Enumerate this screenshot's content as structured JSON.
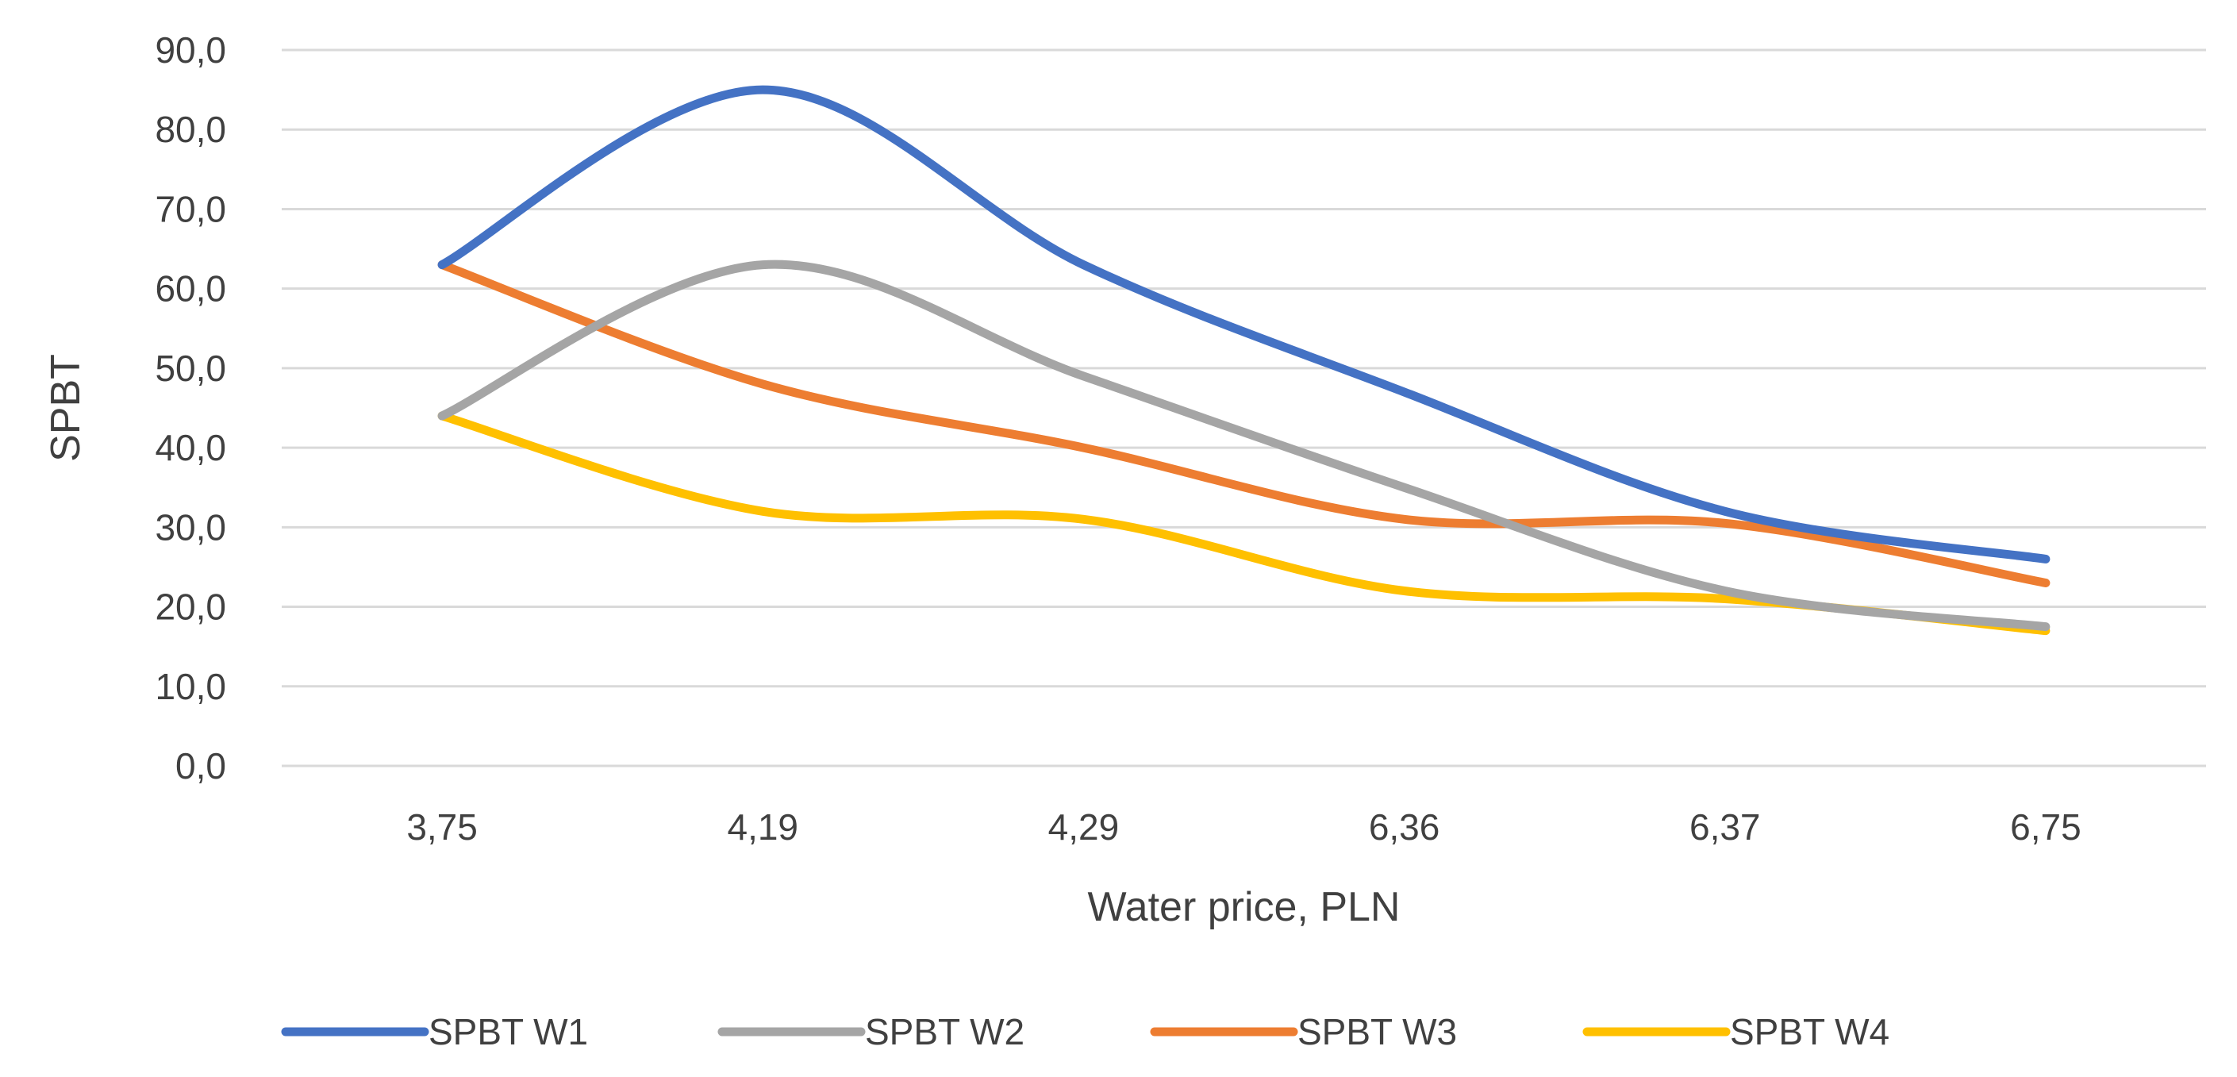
{
  "chart_data": {
    "type": "line",
    "smooth": true,
    "categories": [
      "3,75",
      "4,19",
      "4,29",
      "6,36",
      "6,37",
      "6,75"
    ],
    "series": [
      {
        "name": "SPBT W1",
        "color": "#4472C4",
        "values": [
          63,
          85,
          63,
          47,
          32,
          26
        ]
      },
      {
        "name": "SPBT W2",
        "color": "#A5A5A5",
        "values": [
          44,
          63,
          49,
          35,
          22,
          17.5
        ]
      },
      {
        "name": "SPBT W3",
        "color": "#ED7D31",
        "values": [
          63,
          48,
          40,
          31,
          30.5,
          23
        ]
      },
      {
        "name": "SPBT W4",
        "color": "#FFC000",
        "values": [
          44,
          32,
          31,
          22,
          21,
          17
        ]
      }
    ],
    "xlabel": "Water price, PLN",
    "ylabel": "SPBT",
    "ylim": [
      0,
      90
    ],
    "yticks": [
      "0,0",
      "10,0",
      "20,0",
      "30,0",
      "40,0",
      "50,0",
      "60,0",
      "70,0",
      "80,0",
      "90,0"
    ],
    "grid": true,
    "legend_position": "bottom"
  }
}
